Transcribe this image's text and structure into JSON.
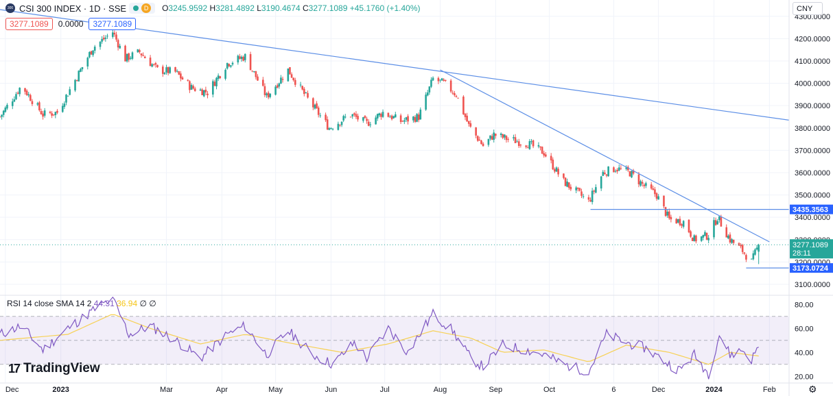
{
  "header": {
    "symbol_title": "CSI 300 INDEX · 1D · SSE",
    "logo_text": "300",
    "source_badge": "D",
    "open_label": "O",
    "open": "3245.9592",
    "high_label": "H",
    "high": "3281.4892",
    "low_label": "L",
    "low": "3190.4674",
    "close_label": "C",
    "close": "3277.1089",
    "change": "+45.1760 (+1.40%)",
    "bid": "3277.1089",
    "spread": "0.0000",
    "ask": "3277.1089"
  },
  "currency": "CNY",
  "rsi_header": {
    "label": "RSI 14 close SMA 14 2",
    "rsi_value": "44.31",
    "sma_value": "36.94",
    "extra1": "∅",
    "extra2": "∅"
  },
  "branding": {
    "logo_glyph": "17",
    "name": "TradingView"
  },
  "colors": {
    "up": "#26a69a",
    "down": "#ef5350",
    "trendline": "#5b8ee6",
    "rsi_line": "#7e57c2",
    "rsi_sma": "#f7d154",
    "rsi_band": "#7e57c2",
    "price_badge": "#26a69a",
    "level_badge": "#2962ff"
  },
  "chart_data": {
    "type": "candlestick",
    "title": "CSI 300 INDEX · 1D · SSE",
    "y_axis": {
      "ticks": [
        "4300.0000",
        "4200.0000",
        "4100.0000",
        "4000.0000",
        "3900.0000",
        "3800.0000",
        "3700.0000",
        "3600.0000",
        "3500.0000",
        "3400.0000",
        "3300.0000",
        "3200.0000",
        "3100.0000"
      ],
      "range": [
        3060,
        4330
      ]
    },
    "x_axis": {
      "ticks": [
        {
          "label": "Dec",
          "date": "2022-12-01"
        },
        {
          "label": "2023",
          "date": "2023-01-01"
        },
        {
          "label": "Mar",
          "date": "2023-03-01"
        },
        {
          "label": "Apr",
          "date": "2023-04-01"
        },
        {
          "label": "May",
          "date": "2023-05-01"
        },
        {
          "label": "Jun",
          "date": "2023-06-01"
        },
        {
          "label": "Jul",
          "date": "2023-07-01"
        },
        {
          "label": "Aug",
          "date": "2023-08-01"
        },
        {
          "label": "Sep",
          "date": "2023-09-01"
        },
        {
          "label": "Oct",
          "date": "2023-10-01"
        },
        {
          "label": "6",
          "date": "2023-11-06"
        },
        {
          "label": "Dec",
          "date": "2023-12-01"
        },
        {
          "label": "2024",
          "date": "2024-01-01"
        },
        {
          "label": "Feb",
          "date": "2024-02-01"
        }
      ],
      "range": [
        "2022-11-28",
        "2024-02-12"
      ]
    },
    "price_path": [
      {
        "date": "2022-11-28",
        "close": 3850
      },
      {
        "date": "2022-12-10",
        "close": 3990
      },
      {
        "date": "2022-12-22",
        "close": 3860
      },
      {
        "date": "2022-12-30",
        "close": 3870
      },
      {
        "date": "2023-01-10",
        "close": 4030
      },
      {
        "date": "2023-01-19",
        "close": 4160
      },
      {
        "date": "2023-01-30",
        "close": 4230
      },
      {
        "date": "2023-02-06",
        "close": 4110
      },
      {
        "date": "2023-02-14",
        "close": 4140
      },
      {
        "date": "2023-02-24",
        "close": 4060
      },
      {
        "date": "2023-03-06",
        "close": 4050
      },
      {
        "date": "2023-03-15",
        "close": 3980
      },
      {
        "date": "2023-03-24",
        "close": 3960
      },
      {
        "date": "2023-04-04",
        "close": 4090
      },
      {
        "date": "2023-04-14",
        "close": 4120
      },
      {
        "date": "2023-04-26",
        "close": 3940
      },
      {
        "date": "2023-05-08",
        "close": 4060
      },
      {
        "date": "2023-05-18",
        "close": 3940
      },
      {
        "date": "2023-05-31",
        "close": 3800
      },
      {
        "date": "2023-06-12",
        "close": 3860
      },
      {
        "date": "2023-06-21",
        "close": 3820
      },
      {
        "date": "2023-06-30",
        "close": 3870
      },
      {
        "date": "2023-07-10",
        "close": 3830
      },
      {
        "date": "2023-07-20",
        "close": 3850
      },
      {
        "date": "2023-07-28",
        "close": 4020
      },
      {
        "date": "2023-08-03",
        "close": 4000
      },
      {
        "date": "2023-08-10",
        "close": 3950
      },
      {
        "date": "2023-08-17",
        "close": 3810
      },
      {
        "date": "2023-08-25",
        "close": 3720
      },
      {
        "date": "2023-08-31",
        "close": 3770
      },
      {
        "date": "2023-09-08",
        "close": 3750
      },
      {
        "date": "2023-09-19",
        "close": 3730
      },
      {
        "date": "2023-09-28",
        "close": 3690
      },
      {
        "date": "2023-10-09",
        "close": 3560
      },
      {
        "date": "2023-10-23",
        "close": 3470
      },
      {
        "date": "2023-10-31",
        "close": 3600
      },
      {
        "date": "2023-11-07",
        "close": 3620
      },
      {
        "date": "2023-11-15",
        "close": 3600
      },
      {
        "date": "2023-11-23",
        "close": 3540
      },
      {
        "date": "2023-11-30",
        "close": 3500
      },
      {
        "date": "2023-12-07",
        "close": 3390
      },
      {
        "date": "2023-12-15",
        "close": 3380
      },
      {
        "date": "2023-12-21",
        "close": 3300
      },
      {
        "date": "2023-12-29",
        "close": 3320
      },
      {
        "date": "2024-01-03",
        "close": 3400
      },
      {
        "date": "2024-01-10",
        "close": 3300
      },
      {
        "date": "2024-01-17",
        "close": 3250
      },
      {
        "date": "2024-01-22",
        "close": 3200
      },
      {
        "date": "2024-01-26",
        "close": 3277.1089
      }
    ],
    "trendlines": [
      {
        "from": {
          "date": "2022-11-28",
          "price": 4330
        },
        "to": {
          "date": "2024-02-12",
          "price": 3835
        }
      },
      {
        "from": {
          "date": "2023-08-01",
          "price": 4060
        },
        "to": {
          "date": "2024-02-01",
          "price": 3290
        }
      }
    ],
    "levels": [
      {
        "price": 3435.3563,
        "label": "3435.3563",
        "from": "2023-10-24"
      },
      {
        "price": 3173.0724,
        "label": "3173.0724",
        "from": "2024-01-19"
      }
    ],
    "last_price": {
      "price": 3277.1089,
      "label": "3277.1089",
      "countdown": "28:11"
    },
    "rsi": {
      "name": "RSI 14 close SMA 14 2",
      "ticks": [
        "80.00",
        "60.00",
        "40.00",
        "20.00"
      ],
      "range": [
        15,
        87
      ],
      "upper": 70,
      "middle": 50,
      "lower": 30,
      "last_rsi": 44.31,
      "last_sma": 36.94,
      "rsi_path": [
        {
          "date": "2022-11-28",
          "v": 55
        },
        {
          "date": "2022-12-10",
          "v": 62
        },
        {
          "date": "2022-12-22",
          "v": 42
        },
        {
          "date": "2023-01-05",
          "v": 60
        },
        {
          "date": "2023-01-19",
          "v": 75
        },
        {
          "date": "2023-01-30",
          "v": 85
        },
        {
          "date": "2023-02-08",
          "v": 55
        },
        {
          "date": "2023-02-20",
          "v": 62
        },
        {
          "date": "2023-03-06",
          "v": 50
        },
        {
          "date": "2023-03-20",
          "v": 35
        },
        {
          "date": "2023-04-04",
          "v": 55
        },
        {
          "date": "2023-04-14",
          "v": 62
        },
        {
          "date": "2023-04-26",
          "v": 38
        },
        {
          "date": "2023-05-08",
          "v": 58
        },
        {
          "date": "2023-05-22",
          "v": 38
        },
        {
          "date": "2023-06-02",
          "v": 30
        },
        {
          "date": "2023-06-14",
          "v": 48
        },
        {
          "date": "2023-06-21",
          "v": 35
        },
        {
          "date": "2023-07-03",
          "v": 60
        },
        {
          "date": "2023-07-14",
          "v": 40
        },
        {
          "date": "2023-07-28",
          "v": 72
        },
        {
          "date": "2023-08-08",
          "v": 58
        },
        {
          "date": "2023-08-18",
          "v": 35
        },
        {
          "date": "2023-08-25",
          "v": 28
        },
        {
          "date": "2023-09-05",
          "v": 46
        },
        {
          "date": "2023-09-18",
          "v": 42
        },
        {
          "date": "2023-09-28",
          "v": 38
        },
        {
          "date": "2023-10-09",
          "v": 30
        },
        {
          "date": "2023-10-23",
          "v": 24
        },
        {
          "date": "2023-11-02",
          "v": 55
        },
        {
          "date": "2023-11-13",
          "v": 48
        },
        {
          "date": "2023-11-23",
          "v": 44
        },
        {
          "date": "2023-12-07",
          "v": 30
        },
        {
          "date": "2023-12-13",
          "v": 25
        },
        {
          "date": "2023-12-21",
          "v": 38
        },
        {
          "date": "2023-12-29",
          "v": 22
        },
        {
          "date": "2024-01-04",
          "v": 55
        },
        {
          "date": "2024-01-10",
          "v": 38
        },
        {
          "date": "2024-01-17",
          "v": 42
        },
        {
          "date": "2024-01-22",
          "v": 34
        },
        {
          "date": "2024-01-26",
          "v": 44.31
        }
      ],
      "sma_path": [
        {
          "date": "2022-11-28",
          "v": 50
        },
        {
          "date": "2023-01-05",
          "v": 55
        },
        {
          "date": "2023-01-30",
          "v": 72
        },
        {
          "date": "2023-02-20",
          "v": 60
        },
        {
          "date": "2023-03-20",
          "v": 47
        },
        {
          "date": "2023-04-14",
          "v": 55
        },
        {
          "date": "2023-05-08",
          "v": 48
        },
        {
          "date": "2023-06-07",
          "v": 40
        },
        {
          "date": "2023-07-03",
          "v": 47
        },
        {
          "date": "2023-07-28",
          "v": 58
        },
        {
          "date": "2023-08-18",
          "v": 52
        },
        {
          "date": "2023-09-05",
          "v": 40
        },
        {
          "date": "2023-09-28",
          "v": 42
        },
        {
          "date": "2023-10-23",
          "v": 32
        },
        {
          "date": "2023-11-13",
          "v": 46
        },
        {
          "date": "2023-12-07",
          "v": 40
        },
        {
          "date": "2023-12-29",
          "v": 30
        },
        {
          "date": "2024-01-10",
          "v": 40
        },
        {
          "date": "2024-01-26",
          "v": 36.94
        }
      ]
    }
  }
}
